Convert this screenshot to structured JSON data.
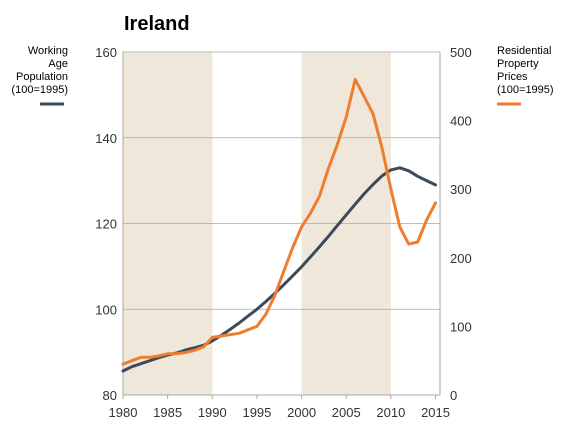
{
  "chart_data": {
    "type": "line",
    "title": "Ireland",
    "xlabel": "",
    "x_ticks": [
      "1980",
      "1985",
      "1990",
      "1995",
      "2000",
      "2005",
      "2010",
      "2015"
    ],
    "xlim": [
      1980,
      2015.5
    ],
    "left_axis": {
      "ylim": [
        80,
        160
      ],
      "ticks": [
        "80",
        "100",
        "120",
        "140",
        "160"
      ]
    },
    "right_axis": {
      "ylim": [
        0,
        500
      ],
      "ticks": [
        "0",
        "100",
        "200",
        "300",
        "400",
        "500"
      ]
    },
    "shaded_periods": [
      [
        1980,
        1990
      ],
      [
        2000,
        2010
      ]
    ],
    "grid": "horizontal",
    "legend_placement": "outside-left and outside-right",
    "series": [
      {
        "name": "Working Age Population (100=1995)",
        "legend_lines": [
          "Working",
          "Age",
          "Population",
          "(100=1995)"
        ],
        "axis": "left",
        "color": "#3d4a5a",
        "x": [
          1980,
          1981,
          1982,
          1983,
          1984,
          1985,
          1986,
          1987,
          1988,
          1989,
          1990,
          1991,
          1992,
          1993,
          1994,
          1995,
          1996,
          1997,
          1998,
          1999,
          2000,
          2001,
          2002,
          2003,
          2004,
          2005,
          2006,
          2007,
          2008,
          2009,
          2010,
          2011,
          2012,
          2013,
          2014,
          2015
        ],
        "y": [
          85.6,
          86.6,
          87.3,
          88.0,
          88.7,
          89.3,
          89.8,
          90.5,
          91.0,
          91.6,
          92.6,
          93.9,
          95.3,
          96.8,
          98.4,
          100.0,
          101.8,
          103.7,
          105.7,
          107.8,
          109.9,
          112.2,
          114.6,
          117.0,
          119.5,
          122.0,
          124.5,
          126.9,
          129.1,
          131.1,
          132.5,
          133.0,
          132.3,
          131.0,
          130.0,
          129.0
        ]
      },
      {
        "name": "Residential Property Prices (100=1995)",
        "legend_lines": [
          "Residential",
          "Property",
          "Prices",
          "(100=1995)"
        ],
        "axis": "right",
        "color": "#ef7d2f",
        "x": [
          1980,
          1981,
          1982,
          1983,
          1984,
          1985,
          1986,
          1987,
          1988,
          1989,
          1990,
          1991,
          1992,
          1993,
          1994,
          1995,
          1996,
          1997,
          1998,
          1999,
          2000,
          2001,
          2002,
          2003,
          2004,
          2005,
          2006,
          2007,
          2008,
          2009,
          2010,
          2011,
          2012,
          2013,
          2014,
          2015
        ],
        "y": [
          45,
          50,
          55,
          55,
          57,
          60,
          60,
          62,
          65,
          70,
          84,
          86,
          88,
          90,
          95,
          100,
          118,
          145,
          180,
          215,
          245,
          265,
          290,
          330,
          365,
          405,
          460,
          435,
          410,
          360,
          300,
          245,
          220,
          223,
          255,
          280
        ]
      }
    ]
  }
}
